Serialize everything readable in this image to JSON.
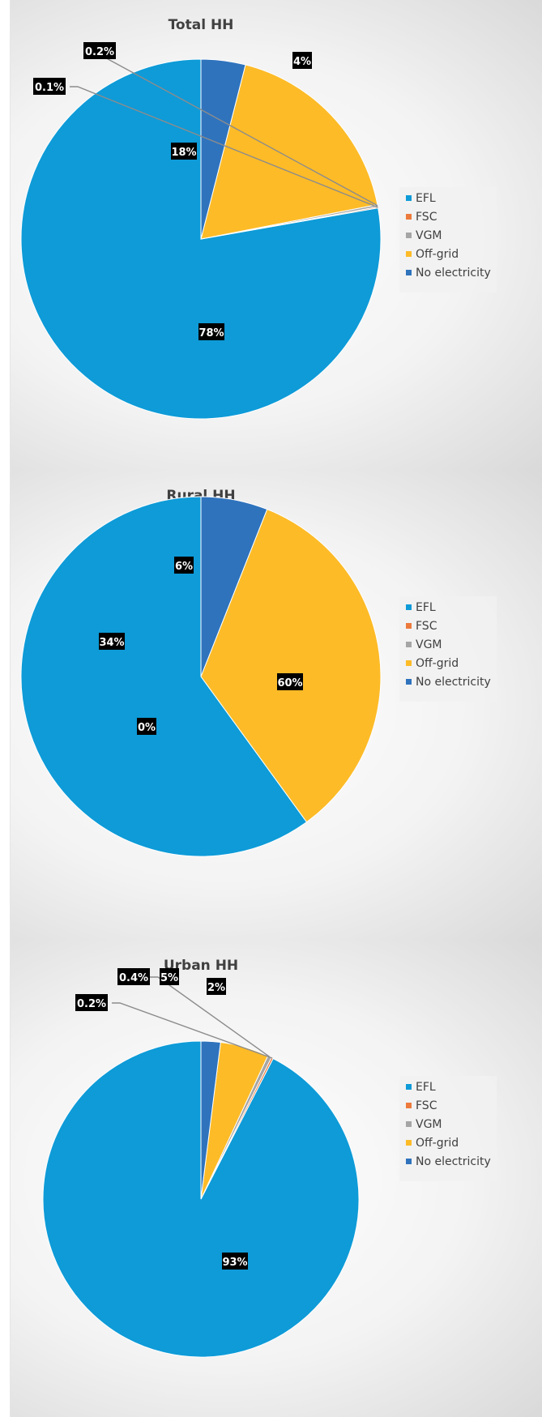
{
  "colors": {
    "EFL": "#0e9bd8",
    "FSC": "#ec7a3c",
    "VGM": "#a5a5a5",
    "Off-grid": "#fdbb27",
    "No electricity": "#2f73bd"
  },
  "chart_data": [
    {
      "type": "pie",
      "title": "Total HH",
      "legend_position": "right",
      "slices": [
        {
          "name": "EFL",
          "value": 78,
          "label": "78%"
        },
        {
          "name": "FSC",
          "value": 0.1,
          "label": "0.1%"
        },
        {
          "name": "VGM",
          "value": 0.2,
          "label": "0.2%"
        },
        {
          "name": "Off-grid",
          "value": 18,
          "label": "18%"
        },
        {
          "name": "No electricity",
          "value": 4,
          "label": "4%"
        }
      ]
    },
    {
      "type": "pie",
      "title": "Rural HH",
      "legend_position": "right",
      "slices": [
        {
          "name": "EFL",
          "value": 60,
          "label": "60%"
        },
        {
          "name": "FSC",
          "value": 0,
          "label": "0%"
        },
        {
          "name": "VGM",
          "value": 0,
          "label": ""
        },
        {
          "name": "Off-grid",
          "value": 34,
          "label": "34%"
        },
        {
          "name": "No electricity",
          "value": 6,
          "label": "6%"
        }
      ]
    },
    {
      "type": "pie",
      "title": "Urban HH",
      "legend_position": "right",
      "slices": [
        {
          "name": "EFL",
          "value": 93,
          "label": "93%"
        },
        {
          "name": "FSC",
          "value": 0.2,
          "label": "0.2%"
        },
        {
          "name": "VGM",
          "value": 0.4,
          "label": "0.4%"
        },
        {
          "name": "Off-grid",
          "value": 5,
          "label": "5%"
        },
        {
          "name": "No electricity",
          "value": 2,
          "label": "2%"
        }
      ]
    }
  ]
}
